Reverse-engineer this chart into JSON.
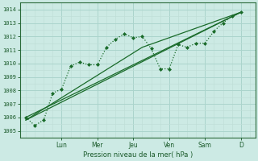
{
  "xlabel": "Pression niveau de la mer( hPa )",
  "bg_color": "#cceae4",
  "grid_color_major": "#aad4cc",
  "grid_color_minor": "#c0dfd8",
  "line_color": "#1a6b2a",
  "ylim": [
    1004.5,
    1014.5
  ],
  "day_labels": [
    "Lun",
    "Mer",
    "Jeu",
    "Ven",
    "Sam",
    "D"
  ],
  "day_positions": [
    2.0,
    4.0,
    6.0,
    8.0,
    10.0,
    12.0
  ],
  "series": [
    [
      0,
      1006.0
    ],
    [
      0.5,
      1005.4
    ],
    [
      1.0,
      1005.8
    ],
    [
      1.5,
      1007.8
    ],
    [
      2.0,
      1008.1
    ],
    [
      2.5,
      1009.8
    ],
    [
      3.0,
      1010.1
    ],
    [
      3.5,
      1009.9
    ],
    [
      4.0,
      1009.9
    ],
    [
      4.5,
      1011.2
    ],
    [
      5.0,
      1011.8
    ],
    [
      5.5,
      1012.2
    ],
    [
      6.0,
      1011.9
    ],
    [
      6.5,
      1012.0
    ],
    [
      7.0,
      1011.1
    ],
    [
      7.5,
      1009.6
    ],
    [
      8.0,
      1009.6
    ],
    [
      8.5,
      1011.4
    ],
    [
      9.0,
      1011.2
    ],
    [
      9.5,
      1011.5
    ],
    [
      10.0,
      1011.5
    ],
    [
      10.5,
      1012.4
    ],
    [
      11.0,
      1013.0
    ],
    [
      11.5,
      1013.5
    ],
    [
      12.0,
      1013.8
    ]
  ],
  "trend_lines": [
    [
      [
        0,
        12.0
      ],
      [
        1006.0,
        1013.8
      ]
    ],
    [
      [
        0,
        7.5,
        12.0
      ],
      [
        1005.8,
        1010.8,
        1013.8
      ]
    ],
    [
      [
        0,
        6.5,
        12.0
      ],
      [
        1005.8,
        1011.2,
        1013.8
      ]
    ]
  ]
}
